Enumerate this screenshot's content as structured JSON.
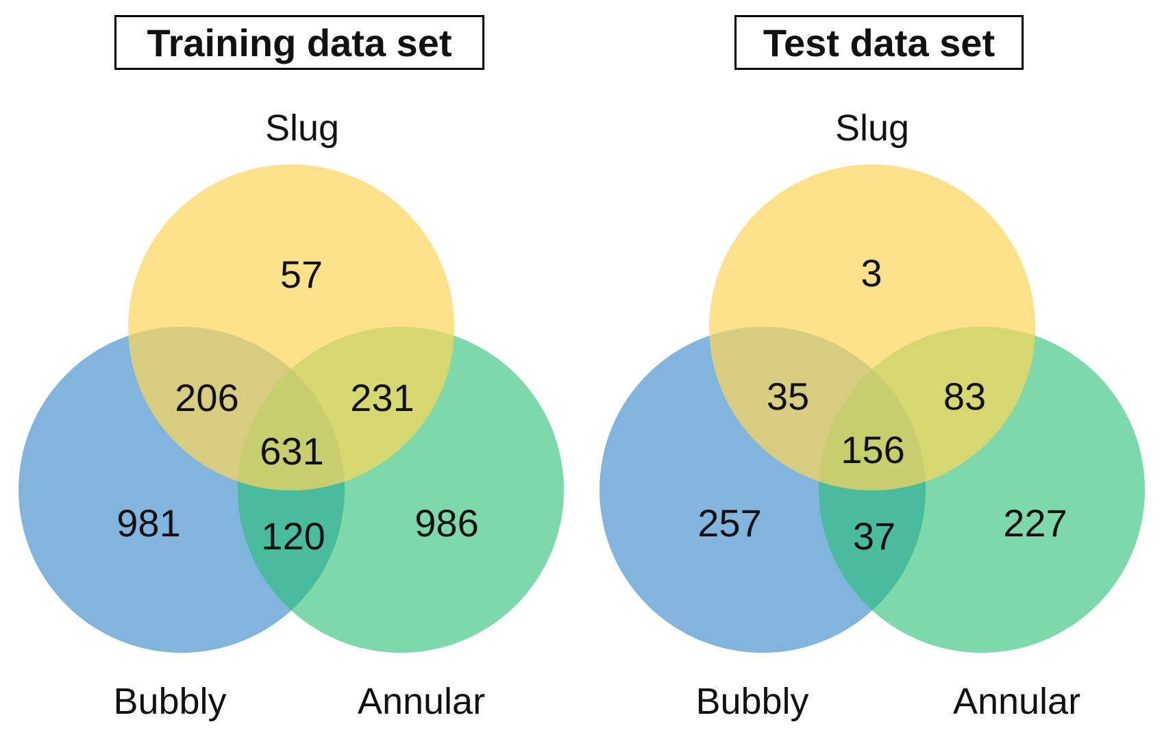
{
  "colors": {
    "slug": "#fed55a",
    "bubbly": "#3e8ecc",
    "annular": "#27c071"
  },
  "panels": [
    {
      "title": "Training data set",
      "sets": {
        "top": "Slug",
        "left": "Bubbly",
        "right": "Annular"
      },
      "counts": {
        "slug_only": "57",
        "slug_bubbly": "206",
        "slug_annular": "231",
        "all_three": "631",
        "bubbly_only": "981",
        "bubbly_annular": "120",
        "annular_only": "986"
      }
    },
    {
      "title": "Test data set",
      "sets": {
        "top": "Slug",
        "left": "Bubbly",
        "right": "Annular"
      },
      "counts": {
        "slug_only": "3",
        "slug_bubbly": "35",
        "slug_annular": "83",
        "all_three": "156",
        "bubbly_only": "257",
        "bubbly_annular": "37",
        "annular_only": "227"
      }
    }
  ]
}
